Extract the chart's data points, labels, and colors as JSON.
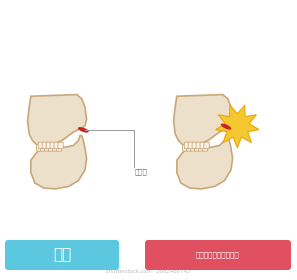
{
  "bg_color": "#ffffff",
  "jaw_fill": "#ede0ca",
  "jaw_stroke": "#c8a87a",
  "teeth_fill": "#f8f2e8",
  "teeth_stroke": "#c8a87a",
  "disc_color": "#cc2222",
  "label_normal_text": "正常",
  "label_disorder_text": "颞下颌关节素乱综合症",
  "label_normal_bg": "#5bc8e0",
  "label_disorder_bg": "#e05060",
  "label_text_color": "#ffffff",
  "annotation_text": "关节盘",
  "annotation_color": "#666666",
  "burst_color": "#f5c832",
  "burst_stroke": "#e8a800",
  "line_color": "#999999",
  "watermark": "shutterstock.com · 2082480742",
  "watermark_color": "#bbbbbb",
  "lw": 1.2
}
